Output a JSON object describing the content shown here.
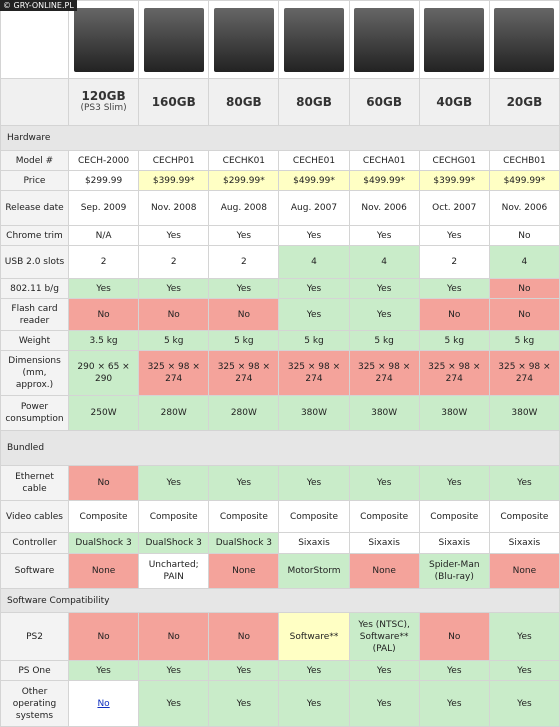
{
  "watermark": "© GRY-ONLINE.PL",
  "columns": [
    {
      "capacity": "120GB",
      "note": "(PS3 Slim)"
    },
    {
      "capacity": "160GB"
    },
    {
      "capacity": "80GB"
    },
    {
      "capacity": "80GB"
    },
    {
      "capacity": "60GB"
    },
    {
      "capacity": "40GB"
    },
    {
      "capacity": "20GB"
    }
  ],
  "sections": [
    {
      "title": "Hardware",
      "rows": [
        {
          "label": "Model #",
          "cells": [
            "CECH-2000",
            "CECHP01",
            "CECHK01",
            "CECHE01",
            "CECHA01",
            "CECHG01",
            "CECHB01"
          ]
        },
        {
          "label": "Price",
          "cells": [
            "$299.99",
            "$399.99*",
            "$299.99*",
            "$499.99*",
            "$499.99*",
            "$399.99*",
            "$499.99*"
          ]
        },
        {
          "label": "Release date",
          "cells": [
            "Sep. 2009",
            "Nov. 2008",
            "Aug. 2008",
            "Aug. 2007",
            "Nov. 2006",
            "Oct. 2007",
            "Nov. 2006"
          ]
        },
        {
          "label": "Chrome trim",
          "cells": [
            "N/A",
            "Yes",
            "Yes",
            "Yes",
            "Yes",
            "Yes",
            "No"
          ]
        },
        {
          "label": "USB 2.0 slots",
          "cells": [
            "2",
            "2",
            "2",
            "4",
            "4",
            "2",
            "4"
          ]
        },
        {
          "label": "802.11 b/g",
          "cells": [
            "Yes",
            "Yes",
            "Yes",
            "Yes",
            "Yes",
            "Yes",
            "No"
          ]
        },
        {
          "label": "Flash card reader",
          "cells": [
            "No",
            "No",
            "No",
            "Yes",
            "Yes",
            "No",
            "No"
          ]
        },
        {
          "label": "Weight",
          "cells": [
            "3.5 kg",
            "5 kg",
            "5 kg",
            "5 kg",
            "5 kg",
            "5 kg",
            "5 kg"
          ]
        },
        {
          "label": "Dimensions (mm, approx.)",
          "cells": [
            "290 × 65 × 290",
            "325 × 98 × 274",
            "325 × 98 × 274",
            "325 × 98 × 274",
            "325 × 98 × 274",
            "325 × 98 × 274",
            "325 × 98 × 274"
          ]
        },
        {
          "label": "Power consumption",
          "cells": [
            "250W",
            "280W",
            "280W",
            "380W",
            "380W",
            "380W",
            "380W"
          ]
        }
      ]
    },
    {
      "title": "Bundled",
      "rows": [
        {
          "label": "Ethernet cable",
          "cells": [
            "No",
            "Yes",
            "Yes",
            "Yes",
            "Yes",
            "Yes",
            "Yes"
          ]
        },
        {
          "label": "Video cables",
          "cells": [
            "Composite",
            "Composite",
            "Composite",
            "Composite",
            "Composite",
            "Composite",
            "Composite"
          ]
        },
        {
          "label": "Controller",
          "cells": [
            "DualShock 3",
            "DualShock 3",
            "DualShock 3",
            "Sixaxis",
            "Sixaxis",
            "Sixaxis",
            "Sixaxis"
          ]
        },
        {
          "label": "Software",
          "cells": [
            "None",
            "Uncharted; PAIN",
            "None",
            "MotorStorm",
            "None",
            "Spider-Man (Blu-ray)",
            "None"
          ]
        }
      ]
    },
    {
      "title": "Software Compatibility",
      "rows": [
        {
          "label": "PS2",
          "cells": [
            "No",
            "No",
            "No",
            "Software**",
            "Yes (NTSC), Software** (PAL)",
            "No",
            "Yes"
          ]
        },
        {
          "label": "PS One",
          "cells": [
            "Yes",
            "Yes",
            "Yes",
            "Yes",
            "Yes",
            "Yes",
            "Yes"
          ]
        },
        {
          "label": "Other operating systems",
          "cells": [
            "No",
            "Yes",
            "Yes",
            "Yes",
            "Yes",
            "Yes",
            "Yes"
          ]
        }
      ]
    }
  ]
}
